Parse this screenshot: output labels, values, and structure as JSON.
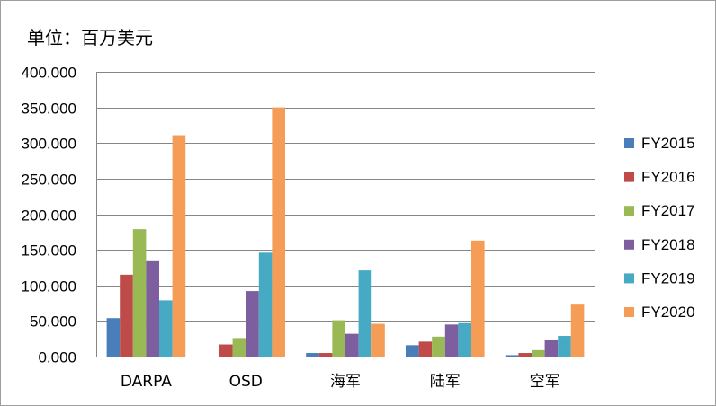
{
  "unit_label": "单位：百万美元",
  "colors": {
    "FY2015": "#4a7ebb",
    "FY2016": "#be4b48",
    "FY2017": "#98b954",
    "FY2018": "#7d5fa0",
    "FY2019": "#46aac5",
    "FY2020": "#f59d56",
    "grid": "#868686",
    "axis": "#868686"
  },
  "chart_data": {
    "type": "bar",
    "title": "",
    "xlabel": "",
    "ylabel": "",
    "ylim": [
      0,
      400
    ],
    "yticks": [
      0,
      50,
      100,
      150,
      200,
      250,
      300,
      350,
      400
    ],
    "ytick_labels": [
      "0.000",
      "50.000",
      "100.000",
      "150.000",
      "200.000",
      "250.000",
      "300.000",
      "350.000",
      "400.000"
    ],
    "grid": true,
    "legend_position": "right",
    "categories": [
      "DARPA",
      "OSD",
      "海军",
      "陆军",
      "空军"
    ],
    "series": [
      {
        "name": "FY2015",
        "values": [
          54,
          0,
          5,
          16,
          2
        ]
      },
      {
        "name": "FY2016",
        "values": [
          115,
          17,
          5,
          21,
          5
        ]
      },
      {
        "name": "FY2017",
        "values": [
          179,
          26,
          51,
          28,
          9
        ]
      },
      {
        "name": "FY2018",
        "values": [
          134,
          92,
          32,
          45,
          24
        ]
      },
      {
        "name": "FY2019",
        "values": [
          79,
          146,
          121,
          47,
          29
        ]
      },
      {
        "name": "FY2020",
        "values": [
          311,
          350,
          46,
          163,
          73
        ]
      }
    ]
  }
}
